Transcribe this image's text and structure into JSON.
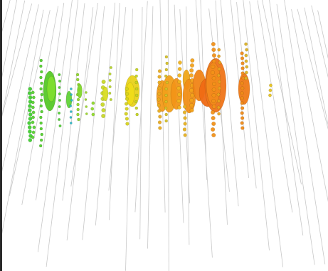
{
  "scene": {
    "description_visible_text": "",
    "colors": {
      "background": "#ffffff",
      "strings": "#c8c8c8",
      "green": "#3fcf2f",
      "lime": "#8fd82a",
      "yellow": "#e8d21c",
      "orange": "#f39a1a",
      "deep_orange": "#ef6a14",
      "cyan": "#2bb8c8"
    }
  }
}
